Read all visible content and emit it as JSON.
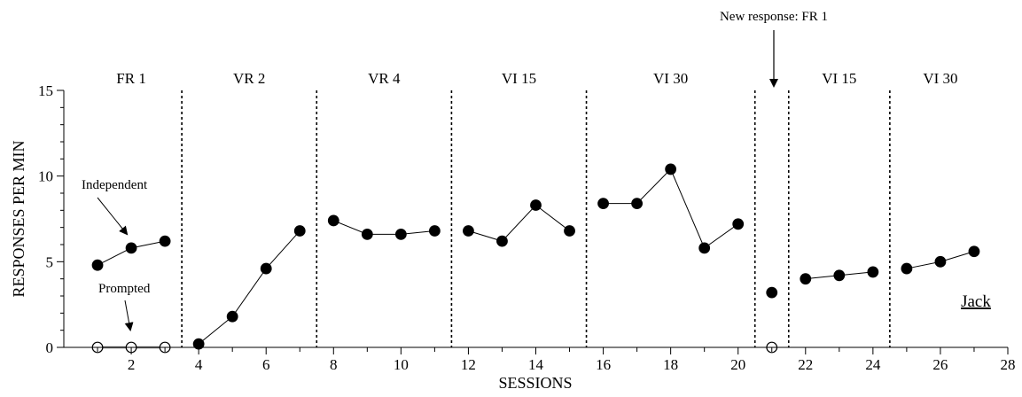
{
  "chart_data": {
    "type": "line",
    "xlabel": "SESSIONS",
    "ylabel": "RESPONSES PER MIN",
    "xlim": [
      0,
      28
    ],
    "ylim": [
      0,
      15
    ],
    "x_ticks": [
      2,
      4,
      6,
      8,
      10,
      12,
      14,
      16,
      18,
      20,
      22,
      24,
      26,
      28
    ],
    "y_ticks": [
      0,
      5,
      10,
      15
    ],
    "phase_lines": [
      3.5,
      7.5,
      11.5,
      15.5,
      20.5,
      21.5,
      24.5
    ],
    "phases": [
      {
        "label": "FR 1",
        "center": 2
      },
      {
        "label": "VR 2",
        "center": 5.5
      },
      {
        "label": "VR 4",
        "center": 9.5
      },
      {
        "label": "VI 15",
        "center": 13.5
      },
      {
        "label": "VI 30",
        "center": 18
      },
      {
        "label": "VI 15",
        "center": 23
      },
      {
        "label": "VI 30",
        "center": 26
      }
    ],
    "series": [
      {
        "name": "Independent",
        "marker": "filled-circle",
        "segments": [
          [
            [
              1,
              4.8
            ],
            [
              2,
              5.8
            ],
            [
              3,
              6.2
            ]
          ],
          [
            [
              4,
              0.2
            ],
            [
              5,
              1.8
            ],
            [
              6,
              4.6
            ],
            [
              7,
              6.8
            ]
          ],
          [
            [
              8,
              7.4
            ],
            [
              9,
              6.6
            ],
            [
              10,
              6.6
            ],
            [
              11,
              6.8
            ]
          ],
          [
            [
              12,
              6.8
            ],
            [
              13,
              6.2
            ],
            [
              14,
              8.3
            ],
            [
              15,
              6.8
            ]
          ],
          [
            [
              16,
              8.4
            ],
            [
              17,
              8.4
            ],
            [
              18,
              10.4
            ],
            [
              19,
              5.8
            ],
            [
              20,
              7.2
            ]
          ],
          [
            [
              21,
              3.2
            ]
          ],
          [
            [
              22,
              4.0
            ],
            [
              23,
              4.2
            ],
            [
              24,
              4.4
            ]
          ],
          [
            [
              25,
              4.6
            ],
            [
              26,
              5.0
            ],
            [
              27,
              5.6
            ]
          ]
        ]
      },
      {
        "name": "Prompted",
        "marker": "open-circle",
        "segments": [
          [
            [
              1,
              0
            ],
            [
              2,
              0
            ],
            [
              3,
              0
            ]
          ],
          [
            [
              21,
              0
            ]
          ]
        ]
      }
    ],
    "annotations": [
      {
        "text": "Independent",
        "target": [
          1.7,
          5.3
        ]
      },
      {
        "text": "Prompted",
        "target": [
          1.9,
          0.9
        ]
      },
      {
        "text": "New response: FR 1",
        "target": [
          21,
          15
        ]
      }
    ],
    "participant": "Jack"
  }
}
